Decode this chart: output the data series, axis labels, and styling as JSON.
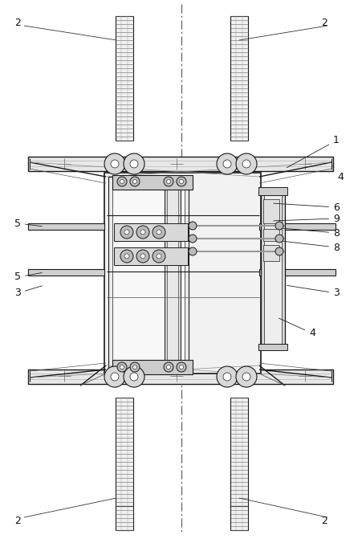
{
  "bg_color": "#ffffff",
  "lc": "#1a1a1a",
  "figsize": [
    4.52,
    6.71
  ],
  "dpi": 100
}
